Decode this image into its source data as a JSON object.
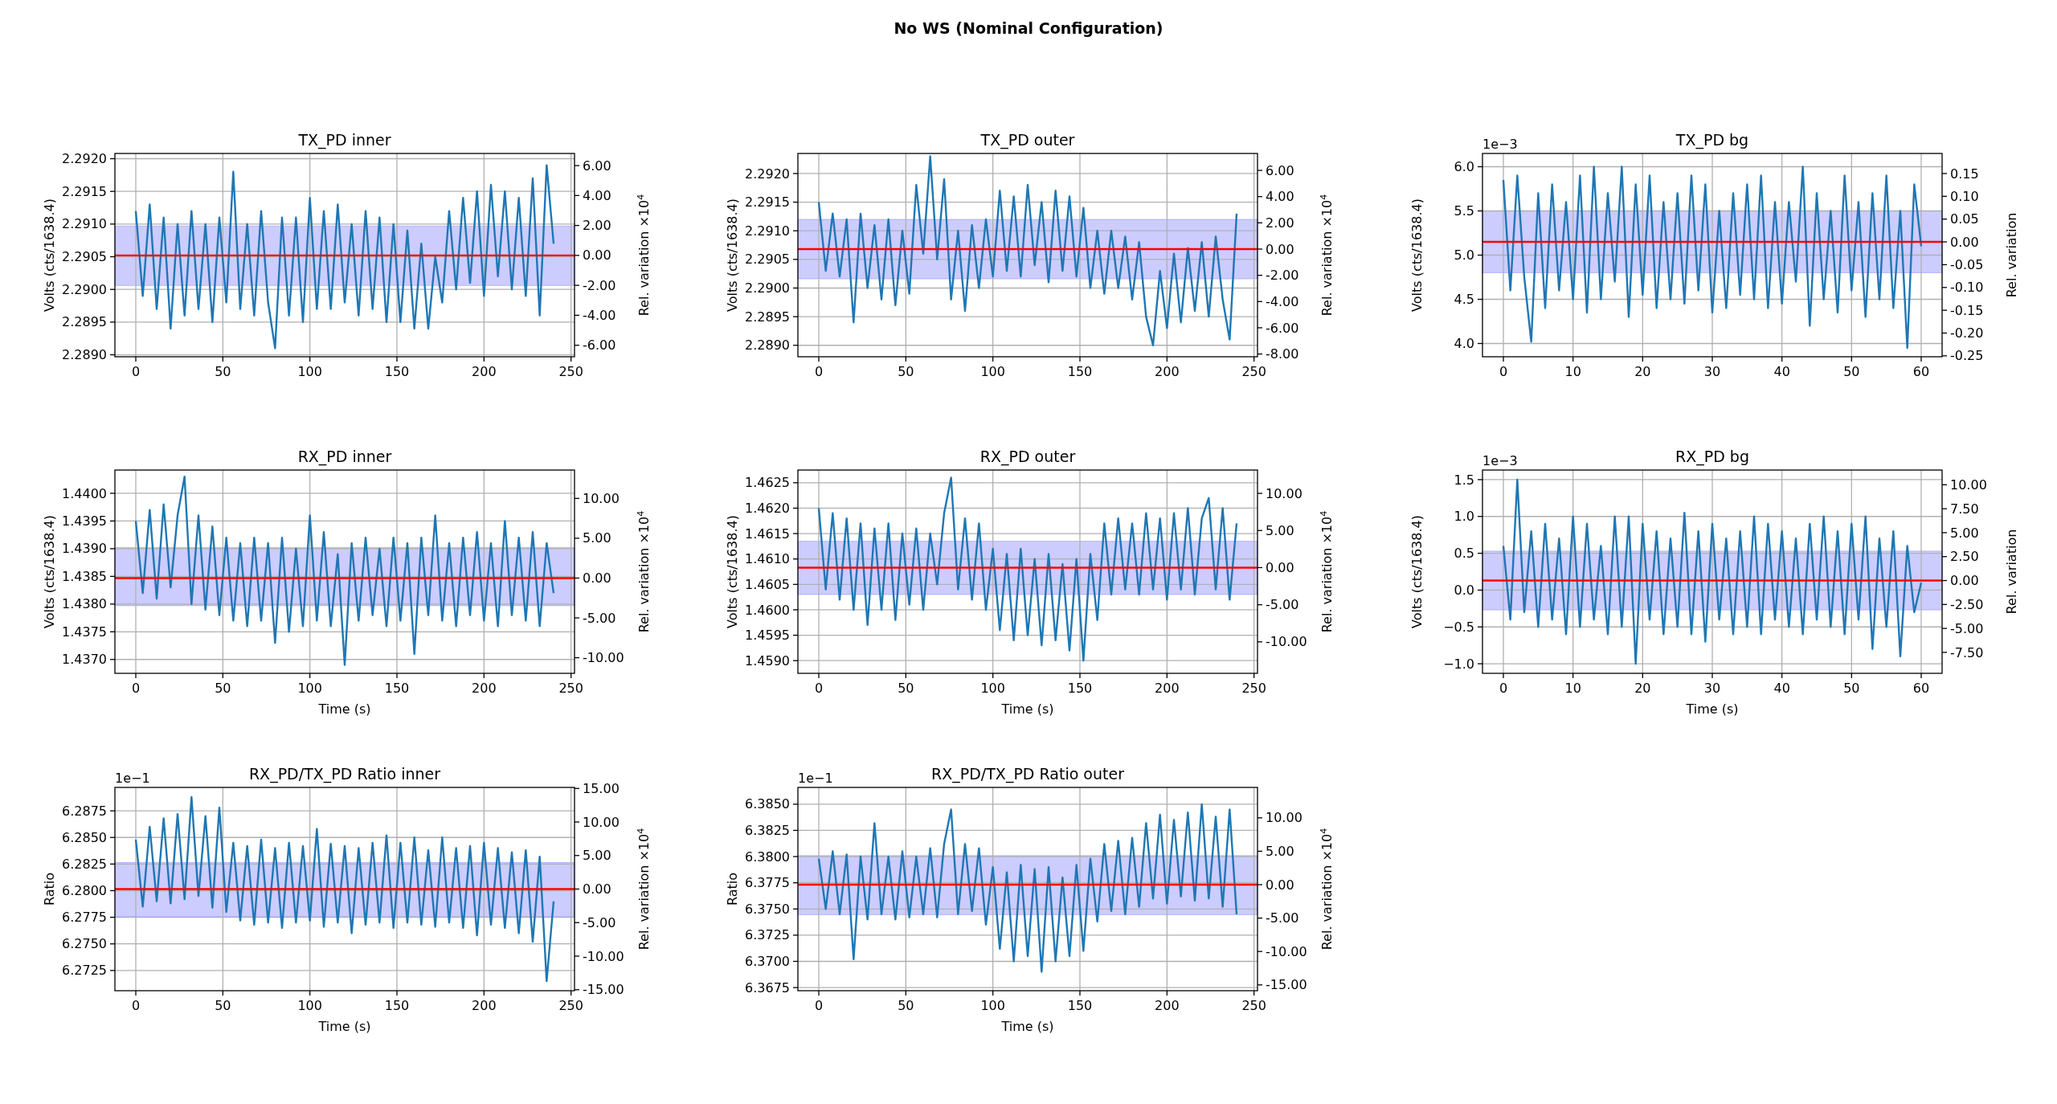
{
  "chart_data": [
    {
      "type": "other",
      "title": "No WS (Nominal Configuration)"
    },
    {
      "type": "line",
      "title": "TX_PD inner",
      "ylabel": "Volts (cts/1638.4)",
      "y2label": "Rel. variation ×10$^{4}$",
      "grid": true,
      "x": [
        0,
        4,
        8,
        12,
        16,
        20,
        24,
        28,
        32,
        36,
        40,
        44,
        48,
        52,
        56,
        60,
        64,
        68,
        72,
        76,
        80,
        84,
        88,
        92,
        96,
        100,
        104,
        108,
        112,
        116,
        120,
        124,
        128,
        132,
        136,
        140,
        144,
        148,
        152,
        156,
        160,
        164,
        168,
        172,
        176,
        180,
        184,
        188,
        192,
        196,
        200,
        204,
        208,
        212,
        216,
        220,
        224,
        228,
        232,
        236,
        240
      ],
      "series": [
        {
          "color": "#1f77b4",
          "values": [
            2.2912,
            2.2899,
            2.2913,
            2.2897,
            2.2911,
            2.2894,
            2.291,
            2.2896,
            2.2912,
            2.2897,
            2.291,
            2.2895,
            2.2911,
            2.2898,
            2.2918,
            2.2897,
            2.291,
            2.2896,
            2.2912,
            2.2898,
            2.2891,
            2.2911,
            2.2896,
            2.2911,
            2.2895,
            2.2914,
            2.2897,
            2.2912,
            2.2897,
            2.2913,
            2.2898,
            2.291,
            2.2896,
            2.2912,
            2.2897,
            2.2911,
            2.2895,
            2.291,
            2.2895,
            2.2909,
            2.2894,
            2.2907,
            2.2894,
            2.2905,
            2.2898,
            2.2912,
            2.29,
            2.2914,
            2.2901,
            2.2915,
            2.2899,
            2.2916,
            2.2902,
            2.2915,
            2.29,
            2.2914,
            2.2899,
            2.2917,
            2.2896,
            2.2919,
            2.2907
          ]
        }
      ],
      "xlim": [
        -12,
        252
      ],
      "xticks": [
        0,
        50,
        100,
        150,
        200,
        250
      ],
      "ylim": [
        2.28897,
        2.29208
      ],
      "yticks": [
        {
          "value": 2.289,
          "label": "2.2890"
        },
        {
          "value": 2.2895,
          "label": "2.2895"
        },
        {
          "value": 2.29,
          "label": "2.2900"
        },
        {
          "value": 2.2905,
          "label": "2.2905"
        },
        {
          "value": 2.291,
          "label": "2.2910"
        },
        {
          "value": 2.2915,
          "label": "2.2915"
        },
        {
          "value": 2.292,
          "label": "2.2920"
        }
      ],
      "y2lim": [
        -6.77,
        6.81
      ],
      "y2ticks": [
        {
          "value": -6,
          "label": "-6.00"
        },
        {
          "value": -4,
          "label": "-4.00"
        },
        {
          "value": -2,
          "label": "-2.00"
        },
        {
          "value": 0,
          "label": "0.00"
        },
        {
          "value": 2,
          "label": "2.00"
        },
        {
          "value": 4,
          "label": "4.00"
        },
        {
          "value": 6,
          "label": "6.00"
        }
      ],
      "ref_lines": [
        {
          "axis": "y",
          "value": 2.29052,
          "color": "#ff0000"
        }
      ],
      "bands": [
        {
          "axis": "y",
          "from": 2.29006,
          "to": 2.29097,
          "color": "#0000ff"
        }
      ]
    },
    {
      "type": "line",
      "title": "TX_PD outer",
      "ylabel": "Volts (cts/1638.4)",
      "y2label": "Rel. variation ×10$^{4}$",
      "grid": true,
      "x": [
        0,
        4,
        8,
        12,
        16,
        20,
        24,
        28,
        32,
        36,
        40,
        44,
        48,
        52,
        56,
        60,
        64,
        68,
        72,
        76,
        80,
        84,
        88,
        92,
        96,
        100,
        104,
        108,
        112,
        116,
        120,
        124,
        128,
        132,
        136,
        140,
        144,
        148,
        152,
        156,
        160,
        164,
        168,
        172,
        176,
        180,
        184,
        188,
        192,
        196,
        200,
        204,
        208,
        212,
        216,
        220,
        224,
        228,
        232,
        236,
        240
      ],
      "series": [
        {
          "color": "#1f77b4",
          "values": [
            2.2915,
            2.2903,
            2.2913,
            2.2902,
            2.2912,
            2.2894,
            2.2913,
            2.29,
            2.2911,
            2.2898,
            2.2912,
            2.2897,
            2.291,
            2.2899,
            2.2918,
            2.2906,
            2.2923,
            2.2905,
            2.2919,
            2.2898,
            2.291,
            2.2896,
            2.2911,
            2.29,
            2.2912,
            2.2902,
            2.2917,
            2.2903,
            2.2916,
            2.2902,
            2.2918,
            2.2904,
            2.2915,
            2.2901,
            2.2917,
            2.2903,
            2.2916,
            2.2902,
            2.2914,
            2.29,
            2.291,
            2.2899,
            2.291,
            2.29,
            2.2909,
            2.2898,
            2.2908,
            2.2895,
            2.289,
            2.2903,
            2.2893,
            2.2906,
            2.2894,
            2.2907,
            2.2896,
            2.2908,
            2.2895,
            2.2909,
            2.2898,
            2.2891,
            2.2913
          ]
        }
      ],
      "xlim": [
        -12,
        252
      ],
      "xticks": [
        0,
        50,
        100,
        150,
        200,
        250
      ],
      "ylim": [
        2.2888,
        2.29235
      ],
      "yticks": [
        {
          "value": 2.289,
          "label": "2.2890"
        },
        {
          "value": 2.2895,
          "label": "2.2895"
        },
        {
          "value": 2.29,
          "label": "2.2900"
        },
        {
          "value": 2.2905,
          "label": "2.2905"
        },
        {
          "value": 2.291,
          "label": "2.2910"
        },
        {
          "value": 2.2915,
          "label": "2.2915"
        },
        {
          "value": 2.292,
          "label": "2.2920"
        }
      ],
      "y2lim": [
        -8.21,
        7.29
      ],
      "y2ticks": [
        {
          "value": -8,
          "label": "-8.00"
        },
        {
          "value": -6,
          "label": "-6.00"
        },
        {
          "value": -4,
          "label": "-4.00"
        },
        {
          "value": -2,
          "label": "-2.00"
        },
        {
          "value": 0,
          "label": "0.00"
        },
        {
          "value": 2,
          "label": "2.00"
        },
        {
          "value": 4,
          "label": "4.00"
        },
        {
          "value": 6,
          "label": "6.00"
        }
      ],
      "ref_lines": [
        {
          "axis": "y",
          "value": 2.29068,
          "color": "#ff0000"
        }
      ],
      "bands": [
        {
          "axis": "y",
          "from": 2.29016,
          "to": 2.2912,
          "color": "#0000ff"
        }
      ]
    },
    {
      "type": "line",
      "title": "TX_PD bg",
      "ylabel": "Volts (cts/1638.4)",
      "y2label": "Rel. variation",
      "grid": true,
      "annotations": [
        "1e−3"
      ],
      "x": [
        0,
        1,
        2,
        3,
        4,
        5,
        6,
        7,
        8,
        9,
        10,
        11,
        12,
        13,
        14,
        15,
        16,
        17,
        18,
        19,
        20,
        21,
        22,
        23,
        24,
        25,
        26,
        27,
        28,
        29,
        30,
        31,
        32,
        33,
        34,
        35,
        36,
        37,
        38,
        39,
        40,
        41,
        42,
        43,
        44,
        45,
        46,
        47,
        48,
        49,
        50,
        51,
        52,
        53,
        54,
        55,
        56,
        57,
        58,
        59,
        60
      ],
      "series": [
        {
          "color": "#1f77b4",
          "values": [
            5.85,
            4.6,
            5.9,
            4.75,
            4.02,
            5.7,
            4.4,
            5.8,
            4.6,
            5.6,
            4.5,
            5.9,
            4.35,
            6.0,
            4.5,
            5.7,
            4.7,
            6.0,
            4.3,
            5.8,
            4.55,
            5.9,
            4.4,
            5.6,
            4.5,
            5.7,
            4.45,
            5.9,
            4.6,
            5.8,
            4.35,
            5.5,
            4.4,
            5.7,
            4.55,
            5.8,
            4.5,
            5.9,
            4.4,
            5.6,
            4.45,
            5.6,
            4.7,
            6.0,
            4.2,
            5.7,
            4.5,
            5.5,
            4.35,
            5.9,
            4.6,
            5.6,
            4.3,
            5.7,
            4.5,
            5.9,
            4.4,
            5.5,
            3.95,
            5.8,
            5.1
          ]
        }
      ],
      "xlim": [
        -3,
        63
      ],
      "xticks": [
        0,
        10,
        20,
        30,
        40,
        50,
        60
      ],
      "ylim": [
        3.85,
        6.15
      ],
      "yticks": [
        {
          "value": 4,
          "label": "4.0"
        },
        {
          "value": 4.5,
          "label": "4.5"
        },
        {
          "value": 5,
          "label": "5.0"
        },
        {
          "value": 5.5,
          "label": "5.5"
        },
        {
          "value": 6,
          "label": "6.0"
        }
      ],
      "y2lim": [
        -0.252,
        0.194
      ],
      "y2ticks": [
        {
          "value": -0.25,
          "label": "-0.25"
        },
        {
          "value": -0.2,
          "label": "-0.20"
        },
        {
          "value": -0.15,
          "label": "-0.15"
        },
        {
          "value": -0.1,
          "label": "-0.10"
        },
        {
          "value": -0.05,
          "label": "-0.05"
        },
        {
          "value": 0,
          "label": "0.00"
        },
        {
          "value": 0.05,
          "label": "0.05"
        },
        {
          "value": 0.1,
          "label": "0.10"
        },
        {
          "value": 0.15,
          "label": "0.15"
        }
      ],
      "ref_lines": [
        {
          "axis": "y",
          "value": 5.15,
          "color": "#ff0000"
        }
      ],
      "bands": [
        {
          "axis": "y",
          "from": 4.8,
          "to": 5.5,
          "color": "#0000ff"
        }
      ]
    },
    {
      "type": "line",
      "title": "RX_PD inner",
      "xlabel": "Time (s)",
      "ylabel": "Volts (cts/1638.4)",
      "y2label": "Rel. variation ×10$^{4}$",
      "grid": true,
      "x": [
        0,
        4,
        8,
        12,
        16,
        20,
        24,
        28,
        32,
        36,
        40,
        44,
        48,
        52,
        56,
        60,
        64,
        68,
        72,
        76,
        80,
        84,
        88,
        92,
        96,
        100,
        104,
        108,
        112,
        116,
        120,
        124,
        128,
        132,
        136,
        140,
        144,
        148,
        152,
        156,
        160,
        164,
        168,
        172,
        176,
        180,
        184,
        188,
        192,
        196,
        200,
        204,
        208,
        212,
        216,
        220,
        224,
        228,
        232,
        236,
        240
      ],
      "series": [
        {
          "color": "#1f77b4",
          "values": [
            1.4395,
            1.4382,
            1.4397,
            1.4381,
            1.4398,
            1.4383,
            1.4396,
            1.4403,
            1.438,
            1.4396,
            1.4379,
            1.4394,
            1.4378,
            1.4392,
            1.4377,
            1.4391,
            1.4376,
            1.4392,
            1.4377,
            1.4391,
            1.4373,
            1.4392,
            1.4375,
            1.439,
            1.4376,
            1.4396,
            1.4377,
            1.4393,
            1.4376,
            1.4389,
            1.4369,
            1.4391,
            1.4377,
            1.4392,
            1.4378,
            1.439,
            1.4376,
            1.4392,
            1.4377,
            1.4391,
            1.4371,
            1.4392,
            1.4378,
            1.4396,
            1.4377,
            1.4391,
            1.4376,
            1.4392,
            1.4378,
            1.4393,
            1.4377,
            1.4391,
            1.4376,
            1.4395,
            1.4378,
            1.4392,
            1.4377,
            1.4393,
            1.4376,
            1.4391,
            1.4382
          ]
        }
      ],
      "xlim": [
        -12,
        252
      ],
      "xticks": [
        0,
        50,
        100,
        150,
        200,
        250
      ],
      "ylim": [
        1.43675,
        1.44042
      ],
      "yticks": [
        {
          "value": 1.437,
          "label": "1.4370"
        },
        {
          "value": 1.4375,
          "label": "1.4375"
        },
        {
          "value": 1.438,
          "label": "1.4380"
        },
        {
          "value": 1.4385,
          "label": "1.4385"
        },
        {
          "value": 1.439,
          "label": "1.4390"
        },
        {
          "value": 1.4395,
          "label": "1.4395"
        },
        {
          "value": 1.44,
          "label": "1.4400"
        }
      ],
      "y2lim": [
        -11.96,
        13.56
      ],
      "y2ticks": [
        {
          "value": -10,
          "label": "-10.00"
        },
        {
          "value": -5,
          "label": "-5.00"
        },
        {
          "value": 0,
          "label": "0.00"
        },
        {
          "value": 5,
          "label": "5.00"
        },
        {
          "value": 10,
          "label": "10.00"
        }
      ],
      "ref_lines": [
        {
          "axis": "y",
          "value": 1.43847,
          "color": "#ff0000"
        }
      ],
      "bands": [
        {
          "axis": "y",
          "from": 1.43797,
          "to": 1.43902,
          "color": "#0000ff"
        }
      ]
    },
    {
      "type": "line",
      "title": "RX_PD outer",
      "xlabel": "Time (s)",
      "ylabel": "Volts (cts/1638.4)",
      "y2label": "Rel. variation ×10$^{4}$",
      "grid": true,
      "x": [
        0,
        4,
        8,
        12,
        16,
        20,
        24,
        28,
        32,
        36,
        40,
        44,
        48,
        52,
        56,
        60,
        64,
        68,
        72,
        76,
        80,
        84,
        88,
        92,
        96,
        100,
        104,
        108,
        112,
        116,
        120,
        124,
        128,
        132,
        136,
        140,
        144,
        148,
        152,
        156,
        160,
        164,
        168,
        172,
        176,
        180,
        184,
        188,
        192,
        196,
        200,
        204,
        208,
        212,
        216,
        220,
        224,
        228,
        232,
        236,
        240
      ],
      "series": [
        {
          "color": "#1f77b4",
          "values": [
            1.462,
            1.4604,
            1.4619,
            1.4602,
            1.4618,
            1.46,
            1.4617,
            1.4597,
            1.4616,
            1.46,
            1.4617,
            1.4598,
            1.4615,
            1.4601,
            1.4616,
            1.46,
            1.4615,
            1.4605,
            1.4619,
            1.4626,
            1.4604,
            1.4618,
            1.4602,
            1.4617,
            1.46,
            1.4612,
            1.4596,
            1.4611,
            1.4594,
            1.4612,
            1.4595,
            1.461,
            1.4593,
            1.4611,
            1.4594,
            1.4609,
            1.4592,
            1.461,
            1.459,
            1.4611,
            1.4598,
            1.4617,
            1.4603,
            1.4618,
            1.4604,
            1.4617,
            1.4603,
            1.4619,
            1.4604,
            1.4618,
            1.4602,
            1.4619,
            1.4604,
            1.462,
            1.4603,
            1.4618,
            1.4622,
            1.4604,
            1.462,
            1.4602,
            1.4617
          ]
        }
      ],
      "xlim": [
        -12,
        252
      ],
      "xticks": [
        0,
        50,
        100,
        150,
        200,
        250
      ],
      "ylim": [
        1.45875,
        1.46275
      ],
      "yticks": [
        {
          "value": 1.459,
          "label": "1.4590"
        },
        {
          "value": 1.4595,
          "label": "1.4595"
        },
        {
          "value": 1.46,
          "label": "1.4600"
        },
        {
          "value": 1.4605,
          "label": "1.4605"
        },
        {
          "value": 1.461,
          "label": "1.4610"
        },
        {
          "value": 1.4615,
          "label": "1.4615"
        },
        {
          "value": 1.462,
          "label": "1.4620"
        },
        {
          "value": 1.4625,
          "label": "1.4625"
        }
      ],
      "y2lim": [
        -14.24,
        13.14
      ],
      "y2ticks": [
        {
          "value": -10,
          "label": "-10.00"
        },
        {
          "value": -5,
          "label": "-5.00"
        },
        {
          "value": 0,
          "label": "0.00"
        },
        {
          "value": 5,
          "label": "5.00"
        },
        {
          "value": 10,
          "label": "10.00"
        }
      ],
      "ref_lines": [
        {
          "axis": "y",
          "value": 1.46083,
          "color": "#ff0000"
        }
      ],
      "bands": [
        {
          "axis": "y",
          "from": 1.4603,
          "to": 1.46135,
          "color": "#0000ff"
        }
      ]
    },
    {
      "type": "line",
      "title": "RX_PD bg",
      "xlabel": "Time (s)",
      "ylabel": "Volts (cts/1638.4)",
      "y2label": "Rel. variation",
      "grid": true,
      "annotations": [
        "1e−3"
      ],
      "x": [
        0,
        1,
        2,
        3,
        4,
        5,
        6,
        7,
        8,
        9,
        10,
        11,
        12,
        13,
        14,
        15,
        16,
        17,
        18,
        19,
        20,
        21,
        22,
        23,
        24,
        25,
        26,
        27,
        28,
        29,
        30,
        31,
        32,
        33,
        34,
        35,
        36,
        37,
        38,
        39,
        40,
        41,
        42,
        43,
        44,
        45,
        46,
        47,
        48,
        49,
        50,
        51,
        52,
        53,
        54,
        55,
        56,
        57,
        58,
        59,
        60
      ],
      "series": [
        {
          "color": "#1f77b4",
          "values": [
            0.6,
            -0.4,
            1.5,
            -0.3,
            0.8,
            -0.5,
            0.9,
            -0.4,
            0.7,
            -0.6,
            1.0,
            -0.5,
            0.9,
            -0.4,
            0.6,
            -0.6,
            1.0,
            -0.5,
            1.0,
            -1.0,
            0.9,
            -0.4,
            0.8,
            -0.6,
            0.7,
            -0.5,
            1.05,
            -0.6,
            0.8,
            -0.7,
            0.9,
            -0.4,
            0.7,
            -0.6,
            0.8,
            -0.5,
            1.0,
            -0.6,
            0.9,
            -0.4,
            0.8,
            -0.5,
            0.7,
            -0.6,
            0.9,
            -0.4,
            1.0,
            -0.5,
            0.8,
            -0.6,
            0.9,
            -0.4,
            1.0,
            -0.8,
            0.7,
            -0.5,
            0.8,
            -0.9,
            0.6,
            -0.3,
            0.1
          ]
        }
      ],
      "xlim": [
        -3,
        63
      ],
      "xticks": [
        0,
        10,
        20,
        30,
        40,
        50,
        60
      ],
      "ylim": [
        -1.13,
        1.63
      ],
      "yticks": [
        {
          "value": -1,
          "label": "−1.0"
        },
        {
          "value": -0.5,
          "label": "−0.5"
        },
        {
          "value": 0,
          "label": "0.0"
        },
        {
          "value": 0.5,
          "label": "0.5"
        },
        {
          "value": 1,
          "label": "1.0"
        },
        {
          "value": 1.5,
          "label": "1.5"
        }
      ],
      "y2lim": [
        -9.69,
        11.54
      ],
      "y2ticks": [
        {
          "value": -7.5,
          "label": "-7.50"
        },
        {
          "value": -5,
          "label": "-5.00"
        },
        {
          "value": -2.5,
          "label": "-2.50"
        },
        {
          "value": 0,
          "label": "0.00"
        },
        {
          "value": 2.5,
          "label": "2.50"
        },
        {
          "value": 5,
          "label": "5.00"
        },
        {
          "value": 7.5,
          "label": "7.50"
        },
        {
          "value": 10,
          "label": "10.00"
        }
      ],
      "ref_lines": [
        {
          "axis": "y",
          "value": 0.13,
          "color": "#ff0000"
        }
      ],
      "bands": [
        {
          "axis": "y",
          "from": -0.27,
          "to": 0.53,
          "color": "#0000ff"
        }
      ]
    },
    {
      "type": "line",
      "title": "RX_PD/TX_PD Ratio inner",
      "xlabel": "Time (s)",
      "ylabel": "Ratio",
      "y2label": "Rel. variation ×10$^{4}$",
      "grid": true,
      "annotations": [
        "1e−1"
      ],
      "x": [
        0,
        4,
        8,
        12,
        16,
        20,
        24,
        28,
        32,
        36,
        40,
        44,
        48,
        52,
        56,
        60,
        64,
        68,
        72,
        76,
        80,
        84,
        88,
        92,
        96,
        100,
        104,
        108,
        112,
        116,
        120,
        124,
        128,
        132,
        136,
        140,
        144,
        148,
        152,
        156,
        160,
        164,
        168,
        172,
        176,
        180,
        184,
        188,
        192,
        196,
        200,
        204,
        208,
        212,
        216,
        220,
        224,
        228,
        232,
        236,
        240
      ],
      "series": [
        {
          "color": "#1f77b4",
          "values": [
            6.2848,
            6.2785,
            6.286,
            6.279,
            6.2868,
            6.2788,
            6.2872,
            6.2792,
            6.2888,
            6.2795,
            6.287,
            6.2784,
            6.2878,
            6.278,
            6.2845,
            6.2772,
            6.2842,
            6.2768,
            6.2848,
            6.277,
            6.284,
            6.2765,
            6.2845,
            6.277,
            6.2842,
            6.2772,
            6.2858,
            6.2766,
            6.2844,
            6.277,
            6.2842,
            6.276,
            6.284,
            6.2768,
            6.2845,
            6.277,
            6.2852,
            6.2765,
            6.2845,
            6.277,
            6.285,
            6.2768,
            6.2838,
            6.2766,
            6.285,
            6.277,
            6.284,
            6.2765,
            6.2842,
            6.2758,
            6.2845,
            6.2768,
            6.284,
            6.2765,
            6.2836,
            6.276,
            6.2838,
            6.2752,
            6.2832,
            6.2715,
            6.279
          ]
        }
      ],
      "xlim": [
        -12,
        252
      ],
      "xticks": [
        0,
        50,
        100,
        150,
        200,
        250
      ],
      "ylim": [
        6.2706,
        6.2897
      ],
      "yticks": [
        {
          "value": 6.2725,
          "label": "6.2725"
        },
        {
          "value": 6.275,
          "label": "6.2750"
        },
        {
          "value": 6.2775,
          "label": "6.2775"
        },
        {
          "value": 6.28,
          "label": "6.2800"
        },
        {
          "value": 6.2825,
          "label": "6.2825"
        },
        {
          "value": 6.285,
          "label": "6.2850"
        },
        {
          "value": 6.2875,
          "label": "6.2875"
        }
      ],
      "y2lim": [
        -15.15,
        15.15
      ],
      "y2ticks": [
        {
          "value": -15,
          "label": "-15.00"
        },
        {
          "value": -10,
          "label": "-10.00"
        },
        {
          "value": -5,
          "label": "-5.00"
        },
        {
          "value": 0,
          "label": "0.00"
        },
        {
          "value": 5,
          "label": "5.00"
        },
        {
          "value": 10,
          "label": "10.00"
        },
        {
          "value": 15,
          "label": "15.00"
        }
      ],
      "ref_lines": [
        {
          "axis": "y",
          "value": 6.28015,
          "color": "#ff0000"
        }
      ],
      "bands": [
        {
          "axis": "y",
          "from": 6.27755,
          "to": 6.28265,
          "color": "#0000ff"
        }
      ]
    },
    {
      "type": "line",
      "title": "RX_PD/TX_PD Ratio outer",
      "xlabel": "Time (s)",
      "ylabel": "Ratio",
      "y2label": "Rel. variation ×10$^{4}$",
      "grid": true,
      "annotations": [
        "1e−1"
      ],
      "x": [
        0,
        4,
        8,
        12,
        16,
        20,
        24,
        28,
        32,
        36,
        40,
        44,
        48,
        52,
        56,
        60,
        64,
        68,
        72,
        76,
        80,
        84,
        88,
        92,
        96,
        100,
        104,
        108,
        112,
        116,
        120,
        124,
        128,
        132,
        136,
        140,
        144,
        148,
        152,
        156,
        160,
        164,
        168,
        172,
        176,
        180,
        184,
        188,
        192,
        196,
        200,
        204,
        208,
        212,
        216,
        220,
        224,
        228,
        232,
        236,
        240
      ],
      "series": [
        {
          "color": "#1f77b4",
          "values": [
            6.3798,
            6.375,
            6.3805,
            6.3745,
            6.3802,
            6.3702,
            6.38,
            6.374,
            6.3832,
            6.3745,
            6.38,
            6.374,
            6.3805,
            6.3742,
            6.38,
            6.3745,
            6.3808,
            6.3742,
            6.3812,
            6.3845,
            6.3745,
            6.3812,
            6.3748,
            6.3808,
            6.3735,
            6.379,
            6.3712,
            6.3785,
            6.37,
            6.3792,
            6.3705,
            6.3788,
            6.369,
            6.379,
            6.37,
            6.378,
            6.3705,
            6.3792,
            6.371,
            6.3798,
            6.3738,
            6.3812,
            6.3748,
            6.3815,
            6.3745,
            6.3818,
            6.3752,
            6.3832,
            6.376,
            6.384,
            6.3755,
            6.3835,
            6.3762,
            6.3842,
            6.3758,
            6.385,
            6.376,
            6.3838,
            6.3752,
            6.3845,
            6.3745
          ]
        }
      ],
      "xlim": [
        -12,
        252
      ],
      "xticks": [
        0,
        50,
        100,
        150,
        200,
        250
      ],
      "ylim": [
        6.3672,
        6.3866
      ],
      "yticks": [
        {
          "value": 6.3675,
          "label": "6.3675"
        },
        {
          "value": 6.37,
          "label": "6.3700"
        },
        {
          "value": 6.3725,
          "label": "6.3725"
        },
        {
          "value": 6.375,
          "label": "6.3750"
        },
        {
          "value": 6.3775,
          "label": "6.3775"
        },
        {
          "value": 6.38,
          "label": "6.3800"
        },
        {
          "value": 6.3825,
          "label": "6.3825"
        },
        {
          "value": 6.385,
          "label": "6.3850"
        }
      ],
      "y2lim": [
        -15.87,
        14.55
      ],
      "y2ticks": [
        {
          "value": -15,
          "label": "-15.00"
        },
        {
          "value": -10,
          "label": "-10.00"
        },
        {
          "value": -5,
          "label": "-5.00"
        },
        {
          "value": 0,
          "label": "0.00"
        },
        {
          "value": 5,
          "label": "5.00"
        },
        {
          "value": 10,
          "label": "10.00"
        }
      ],
      "ref_lines": [
        {
          "axis": "y",
          "value": 6.37732,
          "color": "#ff0000"
        }
      ],
      "bands": [
        {
          "axis": "y",
          "from": 6.37445,
          "to": 6.3801,
          "color": "#0000ff"
        }
      ]
    }
  ]
}
